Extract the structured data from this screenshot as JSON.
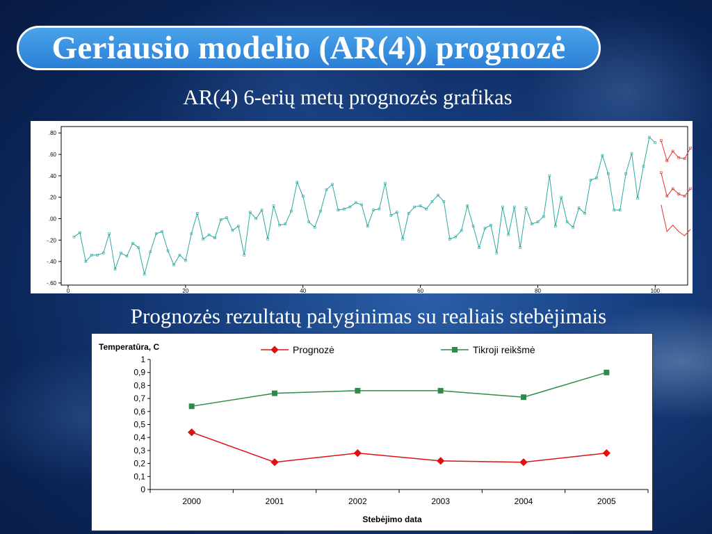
{
  "title": "Geriausio modelio (AR(4)) prognozė",
  "subtitle_top": "AR(4) 6-erių metų prognozės grafikas",
  "subtitle_bottom": "Prognozės rezultatų palyginimas su realiais stebėjimais",
  "colors": {
    "observed": "#2aa8a0",
    "forecast": "#e03030",
    "actual": "#2e8b47",
    "prognoze": "#dd1111"
  },
  "chart_data": [
    {
      "type": "line",
      "title": "",
      "xlabel": "",
      "ylabel": "",
      "xlim": [
        0,
        106
      ],
      "ylim": [
        -0.62,
        0.86
      ],
      "x_ticks": [
        "0",
        "20",
        "40",
        "60",
        "80",
        "100"
      ],
      "y_ticks": [
        ".80",
        ".60",
        ".40",
        ".20",
        ".00",
        "-.20",
        "-.40",
        "-.60"
      ],
      "series": [
        {
          "x_start": 1,
          "values": [
            -0.17,
            -0.13,
            -0.4,
            -0.34,
            -0.34,
            -0.32,
            -0.14,
            -0.47,
            -0.32,
            -0.35,
            -0.23,
            -0.27,
            -0.52,
            -0.31,
            -0.14,
            -0.12,
            -0.3,
            -0.43,
            -0.34,
            -0.39,
            -0.14,
            0.05,
            -0.19,
            -0.15,
            -0.18,
            -0.01,
            0.01,
            -0.11,
            -0.07,
            -0.34,
            0.06,
            0.0,
            0.08,
            -0.19,
            0.12,
            -0.06,
            -0.05,
            0.07,
            0.34,
            0.21,
            -0.03,
            -0.08,
            0.07,
            0.27,
            0.32,
            0.08,
            0.09,
            0.11,
            0.15,
            0.13,
            -0.07,
            0.08,
            0.09,
            0.33,
            0.03,
            0.06,
            -0.19,
            0.05,
            0.11,
            0.12,
            0.09,
            0.16,
            0.22,
            0.16,
            -0.19,
            -0.17,
            -0.11,
            0.12,
            -0.07,
            -0.27,
            -0.09,
            -0.06,
            -0.32,
            0.11,
            -0.15,
            0.11,
            -0.27,
            0.1,
            -0.05,
            -0.03,
            0.02,
            0.4,
            -0.07,
            0.2,
            -0.03,
            -0.08,
            0.1,
            0.05,
            0.36,
            0.38,
            0.59,
            0.42,
            0.08,
            0.08,
            0.42,
            0.61,
            0.19,
            0.49,
            0.76,
            0.71
          ]
        },
        {
          "x_start": 101,
          "values": [
            0.73,
            0.54,
            0.63,
            0.57,
            0.56,
            0.66
          ]
        },
        {
          "x_start": 101,
          "values": [
            0.43,
            0.21,
            0.28,
            0.23,
            0.21,
            0.28
          ]
        },
        {
          "x_start": 101,
          "values": [
            0.13,
            -0.12,
            -0.06,
            -0.12,
            -0.16,
            -0.1
          ]
        }
      ]
    },
    {
      "type": "line",
      "title": "",
      "xlabel": "Stebėjimo data",
      "ylabel": "Temperatūra, C",
      "categories": [
        "2000",
        "2001",
        "2002",
        "2003",
        "2004",
        "2005"
      ],
      "ylim": [
        0,
        1
      ],
      "y_ticks": [
        "1",
        "0,9",
        "0,8",
        "0,7",
        "0,6",
        "0,5",
        "0,4",
        "0,3",
        "0,2",
        "0,1",
        "0"
      ],
      "legend_position": "top",
      "series": [
        {
          "name": "Prognozė",
          "values": [
            0.44,
            0.21,
            0.28,
            0.22,
            0.21,
            0.28
          ]
        },
        {
          "name": "Tikroji reikšmė",
          "values": [
            0.64,
            0.74,
            0.76,
            0.76,
            0.71,
            0.9
          ]
        }
      ]
    }
  ]
}
